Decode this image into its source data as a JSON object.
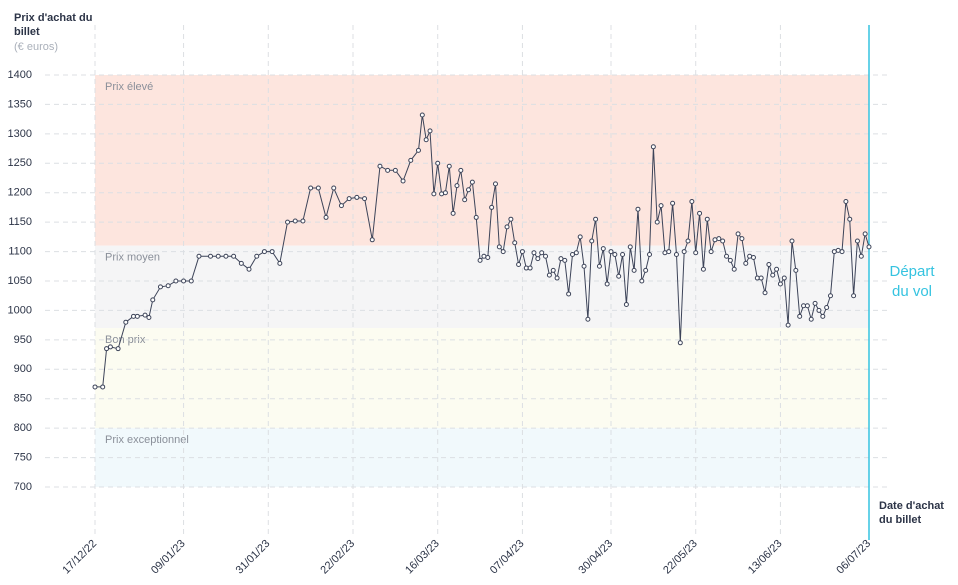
{
  "chart_data": {
    "type": "line",
    "y_title": "Prix d'achat du billet",
    "y_unit": "(€ euros)",
    "x_title": "Date d'achat du billet",
    "ylim": [
      700,
      1400
    ],
    "yticks": [
      700,
      750,
      800,
      850,
      900,
      950,
      1000,
      1050,
      1100,
      1150,
      1200,
      1250,
      1300,
      1350,
      1400
    ],
    "xlim": [
      "17/12/22",
      "06/07/23"
    ],
    "xticks": [
      "17/12/22",
      "09/01/23",
      "31/01/23",
      "22/02/23",
      "16/03/23",
      "07/04/23",
      "30/04/23",
      "22/05/23",
      "13/06/23",
      "06/07/23"
    ],
    "grid": true,
    "color": "#3d4459",
    "bands": [
      {
        "name": "Prix élevé",
        "from": 1110,
        "to": 1400,
        "color": "#fde5de"
      },
      {
        "name": "Prix moyen",
        "from": 970,
        "to": 1110,
        "color": "#f5f5f6"
      },
      {
        "name": "Bon prix",
        "from": 800,
        "to": 970,
        "color": "#fcfcf1"
      },
      {
        "name": "Prix exceptionnel",
        "from": 700,
        "to": 800,
        "color": "#f1f9fc"
      }
    ],
    "marker": {
      "x": "06/07/23",
      "label": "Départ du vol",
      "color": "#35c3e0"
    },
    "x": [
      "17/12/22",
      "19/12/22",
      "20/12/22",
      "21/12/22",
      "23/12/22",
      "25/12/22",
      "27/12/22",
      "28/12/22",
      "30/12/22",
      "31/12/22",
      "01/01/23",
      "03/01/23",
      "05/01/23",
      "07/01/23",
      "09/01/23",
      "11/01/23",
      "13/01/23",
      "16/01/23",
      "18/01/23",
      "20/01/23",
      "22/01/23",
      "24/01/23",
      "26/01/23",
      "28/01/23",
      "30/01/23",
      "01/02/23",
      "03/02/23",
      "05/02/23",
      "07/02/23",
      "09/02/23",
      "11/02/23",
      "13/02/23",
      "15/02/23",
      "17/02/23",
      "19/02/23",
      "21/02/23",
      "23/02/23",
      "25/02/23",
      "27/02/23",
      "01/03/23",
      "03/03/23",
      "05/03/23",
      "07/03/23",
      "09/03/23",
      "11/03/23",
      "12/03/23",
      "13/03/23",
      "14/03/23",
      "15/03/23",
      "16/03/23",
      "17/03/23",
      "18/03/23",
      "19/03/23",
      "20/03/23",
      "21/03/23",
      "22/03/23",
      "23/03/23",
      "24/03/23",
      "25/03/23",
      "26/03/23",
      "27/03/23",
      "28/03/23",
      "29/03/23",
      "30/03/23",
      "31/03/23",
      "01/04/23",
      "02/04/23",
      "03/04/23",
      "04/04/23",
      "05/04/23",
      "06/04/23",
      "07/04/23",
      "08/04/23",
      "09/04/23",
      "10/04/23",
      "11/04/23",
      "12/04/23",
      "13/04/23",
      "14/04/23",
      "15/04/23",
      "16/04/23",
      "17/04/23",
      "18/04/23",
      "19/04/23",
      "20/04/23",
      "21/04/23",
      "22/04/23",
      "23/04/23",
      "24/04/23",
      "25/04/23",
      "26/04/23",
      "27/04/23",
      "28/04/23",
      "29/04/23",
      "30/04/23",
      "01/05/23",
      "02/05/23",
      "03/05/23",
      "04/05/23",
      "05/05/23",
      "06/05/23",
      "07/05/23",
      "08/05/23",
      "09/05/23",
      "10/05/23",
      "11/05/23",
      "12/05/23",
      "13/05/23",
      "14/05/23",
      "15/05/23",
      "16/05/23",
      "17/05/23",
      "18/05/23",
      "19/05/23",
      "20/05/23",
      "21/05/23",
      "22/05/23",
      "23/05/23",
      "24/05/23",
      "25/05/23",
      "26/05/23",
      "27/05/23",
      "28/05/23",
      "29/05/23",
      "30/05/23",
      "31/05/23",
      "01/06/23",
      "02/06/23",
      "03/06/23",
      "04/06/23",
      "05/06/23",
      "06/06/23",
      "07/06/23",
      "08/06/23",
      "09/06/23",
      "10/06/23",
      "11/06/23",
      "12/06/23",
      "13/06/23",
      "14/06/23",
      "15/06/23",
      "16/06/23",
      "17/06/23",
      "18/06/23",
      "19/06/23",
      "20/06/23",
      "21/06/23",
      "22/06/23",
      "23/06/23",
      "24/06/23",
      "25/06/23",
      "26/06/23",
      "27/06/23",
      "28/06/23",
      "29/06/23",
      "30/06/23",
      "01/07/23",
      "02/07/23",
      "03/07/23",
      "04/07/23",
      "05/07/23",
      "06/07/23"
    ],
    "values": [
      870,
      870,
      935,
      938,
      935,
      980,
      990,
      990,
      992,
      988,
      1018,
      1040,
      1042,
      1050,
      1050,
      1050,
      1092,
      1092,
      1092,
      1092,
      1092,
      1080,
      1070,
      1092,
      1100,
      1100,
      1080,
      1150,
      1152,
      1152,
      1208,
      1208,
      1158,
      1208,
      1178,
      1190,
      1192,
      1190,
      1120,
      1245,
      1238,
      1238,
      1220,
      1255,
      1272,
      1332,
      1290,
      1305,
      1198,
      1250,
      1198,
      1200,
      1245,
      1165,
      1212,
      1238,
      1188,
      1205,
      1218,
      1158,
      1085,
      1092,
      1090,
      1175,
      1215,
      1108,
      1100,
      1142,
      1155,
      1115,
      1078,
      1100,
      1072,
      1072,
      1098,
      1088,
      1098,
      1092,
      1060,
      1068,
      1055,
      1088,
      1085,
      1028,
      1095,
      1098,
      1125,
      1075,
      985,
      1118,
      1155,
      1075,
      1105,
      1045,
      1100,
      1095,
      1058,
      1095,
      1010,
      1108,
      1068,
      1172,
      1050,
      1068,
      1095,
      1278,
      1150,
      1178,
      1098,
      1100,
      1182,
      1095,
      945,
      1100,
      1118,
      1185,
      1098,
      1165,
      1070,
      1155,
      1100,
      1120,
      1122,
      1118,
      1092,
      1085,
      1070,
      1130,
      1122,
      1080,
      1092,
      1090,
      1055,
      1055,
      1030,
      1078,
      1060,
      1070,
      1045,
      1055,
      975,
      1118,
      1068,
      990,
      1008,
      1008,
      985,
      1012,
      1000,
      990,
      1005,
      1025,
      1100,
      1102,
      1100,
      1185,
      1155,
      1025,
      1118,
      1092,
      1130,
      1108
    ]
  }
}
